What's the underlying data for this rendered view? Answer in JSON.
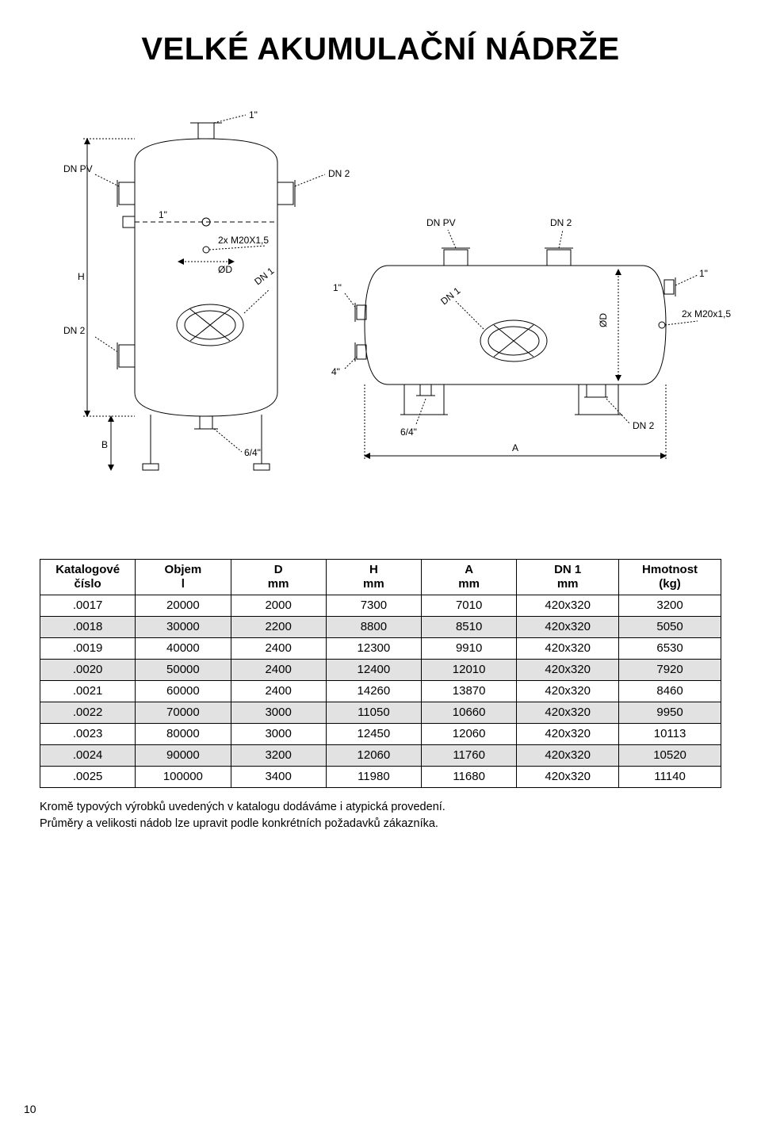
{
  "title": "VELKÉ AKUMULAČNÍ NÁDRŽE",
  "diagram": {
    "labels": {
      "top_port": "1\"",
      "dn_pv": "DN PV",
      "dn_2": "DN 2",
      "dn_1": "DN 1",
      "one_inch": "1\"",
      "m20": "2x M20X1,5",
      "m20_right": "2x M20x1,5",
      "phi_d": "ØD",
      "height_H": "H",
      "four_inch": "4\"",
      "six_quarter": "6/4\"",
      "base_B": "B",
      "width_A": "A"
    },
    "stroke": "#000000",
    "stroke_w": 1,
    "font_size": 12,
    "font_family": "Arial, sans-serif"
  },
  "table": {
    "headers": [
      {
        "top": "Katalogové",
        "bottom": "číslo"
      },
      {
        "top": "Objem",
        "bottom": "l"
      },
      {
        "top": "D",
        "bottom": "mm"
      },
      {
        "top": "H",
        "bottom": "mm"
      },
      {
        "top": "A",
        "bottom": "mm"
      },
      {
        "top": "DN 1",
        "bottom": "mm"
      },
      {
        "top": "Hmotnost",
        "bottom": "(kg)"
      }
    ],
    "rows": [
      {
        "shade": false,
        "cells": [
          ".0017",
          "20000",
          "2000",
          "7300",
          "7010",
          "420x320",
          "3200"
        ]
      },
      {
        "shade": true,
        "cells": [
          ".0018",
          "30000",
          "2200",
          "8800",
          "8510",
          "420x320",
          "5050"
        ]
      },
      {
        "shade": false,
        "cells": [
          ".0019",
          "40000",
          "2400",
          "12300",
          "9910",
          "420x320",
          "6530"
        ]
      },
      {
        "shade": true,
        "cells": [
          ".0020",
          "50000",
          "2400",
          "12400",
          "12010",
          "420x320",
          "7920"
        ]
      },
      {
        "shade": false,
        "cells": [
          ".0021",
          "60000",
          "2400",
          "14260",
          "13870",
          "420x320",
          "8460"
        ]
      },
      {
        "shade": true,
        "cells": [
          ".0022",
          "70000",
          "3000",
          "11050",
          "10660",
          "420x320",
          "9950"
        ]
      },
      {
        "shade": false,
        "cells": [
          ".0023",
          "80000",
          "3000",
          "12450",
          "12060",
          "420x320",
          "10113"
        ]
      },
      {
        "shade": true,
        "cells": [
          ".0024",
          "90000",
          "3200",
          "12060",
          "11760",
          "420x320",
          "10520"
        ]
      },
      {
        "shade": false,
        "cells": [
          ".0025",
          "100000",
          "3400",
          "11980",
          "11680",
          "420x320",
          "11140"
        ]
      }
    ],
    "col_widths_pct": [
      14,
      14,
      14,
      14,
      14,
      15,
      15
    ],
    "border_color": "#000000",
    "shade_color": "#e2e2e2",
    "font_size": 15
  },
  "notes": {
    "line1": "Kromě typových výrobků uvedených v katalogu dodáváme i atypická provedení.",
    "line2": "Průměry a velikosti nádob lze upravit podle konkrétních požadavků zákazníka."
  },
  "page_number": "10"
}
